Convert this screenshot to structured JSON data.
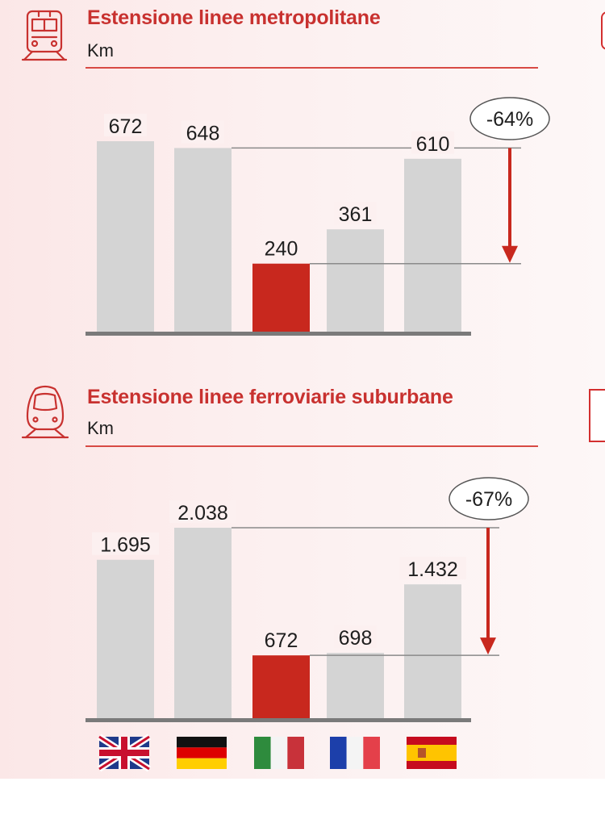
{
  "colors": {
    "accent": "#c8281e",
    "bar": "#d4d4d4",
    "baseline": "#7a7a7a",
    "title": "#c8312f"
  },
  "chart_data": [
    {
      "type": "bar",
      "title": "Estensione linee metropolitane",
      "subtitle": "Km",
      "categories": [
        "UK",
        "Germany",
        "Italy",
        "France",
        "Spain"
      ],
      "values": [
        672,
        648,
        240,
        361,
        610
      ],
      "value_labels": [
        "672",
        "648",
        "240",
        "361",
        "610"
      ],
      "highlight_index": 2,
      "annotation": "-64%",
      "icon": "metro-train-icon"
    },
    {
      "type": "bar",
      "title": "Estensione linee ferroviarie suburbane",
      "subtitle": "Km",
      "categories": [
        "UK",
        "Germany",
        "Italy",
        "France",
        "Spain"
      ],
      "values": [
        1695,
        2038,
        672,
        698,
        1432
      ],
      "value_labels": [
        "1.695",
        "2.038",
        "672",
        "698",
        "1.432"
      ],
      "highlight_index": 2,
      "annotation": "-67%",
      "icon": "suburban-train-icon"
    }
  ],
  "flags": [
    "uk-flag-icon",
    "germany-flag-icon",
    "italy-flag-icon",
    "france-flag-icon",
    "spain-flag-icon"
  ]
}
